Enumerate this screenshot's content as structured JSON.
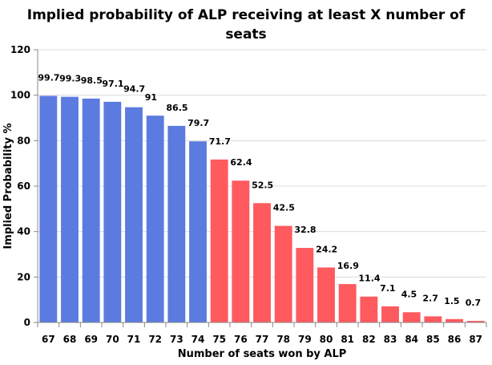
{
  "chart_data": {
    "type": "bar",
    "title_lines": [
      "Implied probability of ALP receiving at least X number of",
      "seats"
    ],
    "xlabel": "Number of seats won by ALP",
    "ylabel": "Implied Probability %",
    "ylim": [
      0,
      120
    ],
    "yticks": [
      0,
      20,
      40,
      60,
      80,
      100,
      120
    ],
    "grid": true,
    "categories": [
      "67",
      "68",
      "69",
      "70",
      "71",
      "72",
      "73",
      "74",
      "75",
      "76",
      "77",
      "78",
      "79",
      "80",
      "81",
      "82",
      "83",
      "84",
      "85",
      "86",
      "87"
    ],
    "values": [
      99.7,
      99.3,
      98.5,
      97.1,
      94.7,
      91,
      86.5,
      79.7,
      71.7,
      62.4,
      52.5,
      42.5,
      32.8,
      24.2,
      16.9,
      11.4,
      7.1,
      4.5,
      2.7,
      1.5,
      0.7
    ],
    "colors": {
      "below_75": "#5b7be0",
      "from_75": "#ff5a5e"
    }
  }
}
